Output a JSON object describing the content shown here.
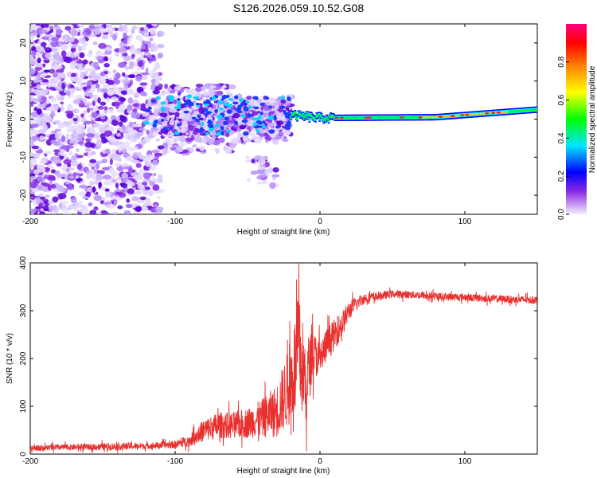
{
  "title": "S126.2026.059.10.52.G08",
  "chart_data": [
    {
      "type": "heatmap",
      "title": "S126.2026.059.10.52.G08",
      "xlabel": "Height of straight line (km)",
      "ylabel": "Frequency (Hz)",
      "xlim": [
        -200,
        150
      ],
      "ylim": [
        -25,
        25
      ],
      "x_ticks": [
        "-200",
        "-100",
        "0",
        "100"
      ],
      "y_ticks": [
        "-20",
        "-10",
        "0",
        "10",
        "20"
      ],
      "colorbar": {
        "label": "Normalized spectral amplitude",
        "range": [
          0,
          1
        ],
        "ticks": [
          "0.0",
          "0.2",
          "0.4",
          "0.6",
          "0.8"
        ],
        "colors": [
          "#f2ecff",
          "#7f00ff",
          "#0000ff",
          "#00ffff",
          "#00ff00",
          "#ffff00",
          "#ff7f00",
          "#ff0000",
          "#ff0080"
        ]
      },
      "description_values": {
        "scatter_region_x": [
          -200,
          -20
        ],
        "scatter_freq_spread_hz": [
          -25,
          25
        ],
        "signal_line_x": [
          -20,
          150
        ],
        "signal_line_freq_hz": [
          1.0,
          0.3,
          0.5,
          2.5
        ],
        "signal_line_x_points": [
          -20,
          0,
          80,
          150
        ]
      }
    },
    {
      "type": "line",
      "title": "",
      "xlabel": "Height of straight line (km)",
      "ylabel": "SNR (10 * v/v)",
      "xlim": [
        -200,
        150
      ],
      "ylim": [
        0,
        400
      ],
      "x_ticks": [
        "-200",
        "-100",
        "0",
        "100"
      ],
      "y_ticks": [
        "0",
        "100",
        "200",
        "300",
        "400"
      ],
      "series": [
        {
          "name": "SNR",
          "color": "#e8302e",
          "x": [
            -200,
            -180,
            -160,
            -140,
            -120,
            -100,
            -90,
            -80,
            -70,
            -60,
            -50,
            -40,
            -30,
            -20,
            -15,
            -10,
            -5,
            0,
            5,
            10,
            15,
            20,
            25,
            30,
            40,
            50,
            60,
            80,
            100,
            120,
            150
          ],
          "y": [
            12,
            14,
            15,
            16,
            17,
            20,
            28,
            50,
            60,
            60,
            65,
            75,
            90,
            150,
            220,
            150,
            210,
            200,
            230,
            250,
            270,
            300,
            315,
            325,
            330,
            335,
            334,
            330,
            328,
            325,
            322
          ],
          "noise_amplitude": [
            7,
            8,
            8,
            10,
            8,
            10,
            15,
            30,
            35,
            35,
            40,
            50,
            70,
            110,
            150,
            120,
            60,
            50,
            45,
            40,
            35,
            25,
            18,
            15,
            12,
            10,
            10,
            10,
            10,
            10,
            10
          ]
        }
      ]
    }
  ]
}
